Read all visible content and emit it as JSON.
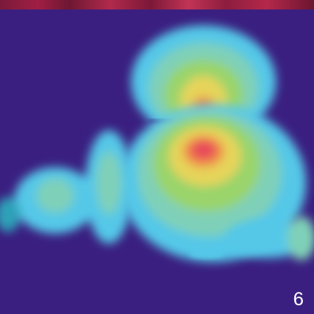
{
  "label": {
    "number": "6"
  },
  "colors": {
    "background": "#3a1f80",
    "low": "#54c8e8",
    "mid_low": "#7fd0b8",
    "mid": "#9ad46a",
    "mid_high": "#e6d45a",
    "high": "#f08a4a",
    "peak": "#e8485a",
    "top_strip": "#a01f44"
  }
}
